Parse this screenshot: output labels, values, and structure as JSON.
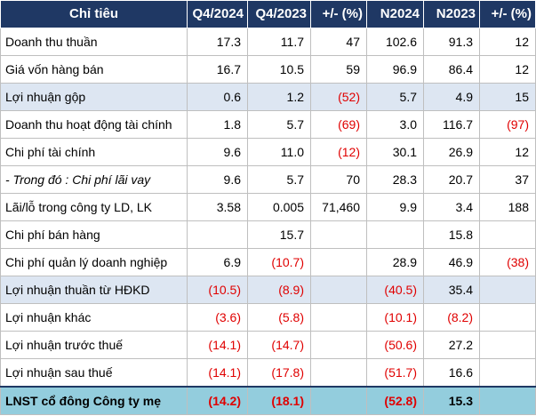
{
  "table": {
    "headers": [
      "Chỉ tiêu",
      "Q4/2024",
      "Q4/2023",
      "+/- (%)",
      "N2024",
      "N2023",
      "+/- (%)"
    ],
    "rows": [
      {
        "label": "Doanh thu thuần",
        "cells": [
          "17.3",
          "11.7",
          "47",
          "102.6",
          "91.3",
          "12"
        ],
        "neg": [
          false,
          false,
          false,
          false,
          false,
          false
        ],
        "style": ""
      },
      {
        "label": "Giá vốn hàng bán",
        "cells": [
          "16.7",
          "10.5",
          "59",
          "96.9",
          "86.4",
          "12"
        ],
        "neg": [
          false,
          false,
          false,
          false,
          false,
          false
        ],
        "style": ""
      },
      {
        "label": "Lợi nhuận gộp",
        "cells": [
          "0.6",
          "1.2",
          "(52)",
          "5.7",
          "4.9",
          "15"
        ],
        "neg": [
          false,
          false,
          true,
          false,
          false,
          false
        ],
        "style": "shade"
      },
      {
        "label": "Doanh thu hoạt động tài chính",
        "cells": [
          "1.8",
          "5.7",
          "(69)",
          "3.0",
          "116.7",
          "(97)"
        ],
        "neg": [
          false,
          false,
          true,
          false,
          false,
          true
        ],
        "style": ""
      },
      {
        "label": "Chi phí tài chính",
        "cells": [
          "9.6",
          "11.0",
          "(12)",
          "30.1",
          "26.9",
          "12"
        ],
        "neg": [
          false,
          false,
          true,
          false,
          false,
          false
        ],
        "style": ""
      },
      {
        "label": "- Trong đó : Chi phí lãi vay",
        "cells": [
          "9.6",
          "5.7",
          "70",
          "28.3",
          "20.7",
          "37"
        ],
        "neg": [
          false,
          false,
          false,
          false,
          false,
          false
        ],
        "style": "italic"
      },
      {
        "label": "Lãi/lỗ trong công ty LD, LK",
        "cells": [
          "3.58",
          "0.005",
          "71,460",
          "9.9",
          "3.4",
          "188"
        ],
        "neg": [
          false,
          false,
          false,
          false,
          false,
          false
        ],
        "style": ""
      },
      {
        "label": "Chi phí bán hàng",
        "cells": [
          "",
          "15.7",
          "",
          "",
          "15.8",
          ""
        ],
        "neg": [
          false,
          false,
          false,
          false,
          false,
          false
        ],
        "style": ""
      },
      {
        "label": "Chi phí quản lý doanh nghiệp",
        "cells": [
          "6.9",
          "(10.7)",
          "",
          "28.9",
          "46.9",
          "(38)"
        ],
        "neg": [
          false,
          true,
          false,
          false,
          false,
          true
        ],
        "style": ""
      },
      {
        "label": "Lợi nhuận thuần từ HĐKD",
        "cells": [
          "(10.5)",
          "(8.9)",
          "",
          "(40.5)",
          "35.4",
          ""
        ],
        "neg": [
          true,
          true,
          false,
          true,
          false,
          false
        ],
        "style": "shade"
      },
      {
        "label": "Lợi nhuận khác",
        "cells": [
          "(3.6)",
          "(5.8)",
          "",
          "(10.1)",
          "(8.2)",
          ""
        ],
        "neg": [
          true,
          true,
          false,
          true,
          true,
          false
        ],
        "style": ""
      },
      {
        "label": "Lợi nhuận trước thuế",
        "cells": [
          "(14.1)",
          "(14.7)",
          "",
          "(50.6)",
          "27.2",
          ""
        ],
        "neg": [
          true,
          true,
          false,
          true,
          false,
          false
        ],
        "style": ""
      },
      {
        "label": "Lợi nhuận sau thuế",
        "cells": [
          "(14.1)",
          "(17.8)",
          "",
          "(51.7)",
          "16.6",
          ""
        ],
        "neg": [
          true,
          true,
          false,
          true,
          false,
          false
        ],
        "style": ""
      },
      {
        "label": "LNST cổ đông Công ty mẹ",
        "cells": [
          "(14.2)",
          "(18.1)",
          "",
          "(52.8)",
          "15.3",
          ""
        ],
        "neg": [
          true,
          true,
          false,
          true,
          false,
          false
        ],
        "style": "total"
      }
    ]
  }
}
